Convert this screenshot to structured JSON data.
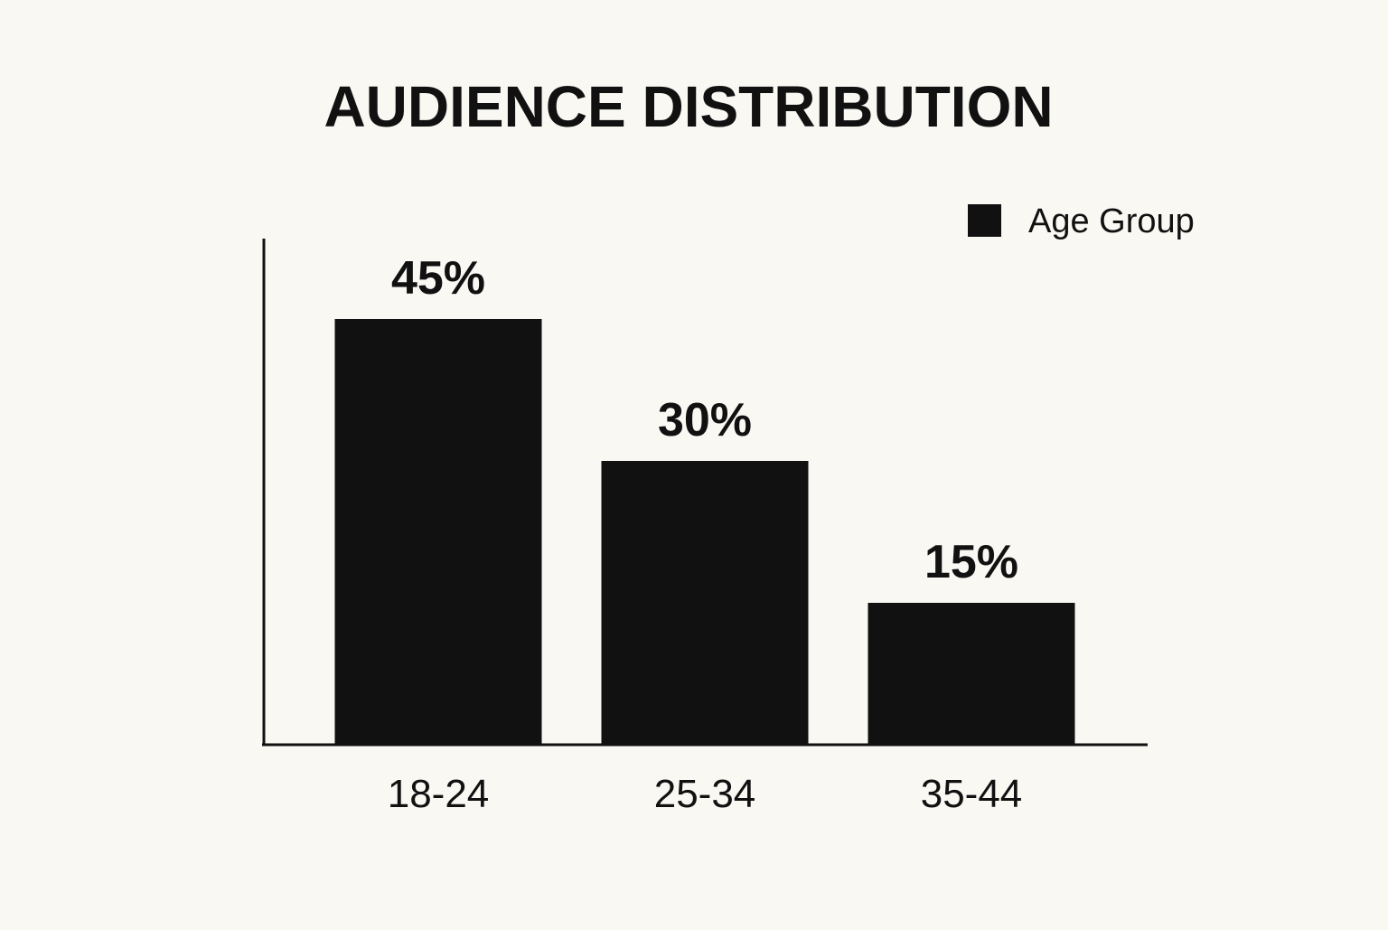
{
  "chart_data": {
    "type": "bar",
    "title": "AUDIENCE DISTRIBUTION",
    "categories": [
      "18-24",
      "25-34",
      "35-44"
    ],
    "values": [
      45,
      30,
      15
    ],
    "value_labels": [
      "45%",
      "30%",
      "15%"
    ],
    "legend": {
      "label": "Age Group",
      "placement": "top-right"
    },
    "bar_color": "#111111",
    "axis_color": "#111111",
    "background_color": "#faf8f3",
    "ylim": [
      0,
      55
    ],
    "grid": false
  }
}
